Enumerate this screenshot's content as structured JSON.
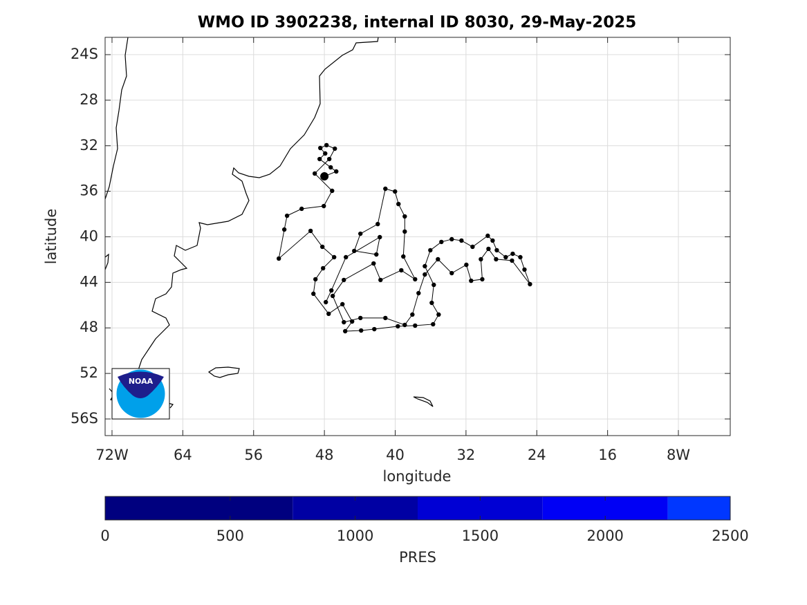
{
  "chart_data": {
    "type": "scatter",
    "title": "WMO ID 3902238, internal ID 8030, 29-May-2025",
    "xlabel": "longitude",
    "ylabel": "latitude",
    "connected": true,
    "color": "#000000",
    "grid": true,
    "xlim": [
      -72.78,
      -2.14
    ],
    "ylim": [
      -57.46,
      -22.48
    ],
    "xticks": [
      {
        "value": -72,
        "label": "72W"
      },
      {
        "value": -64,
        "label": "64"
      },
      {
        "value": -56,
        "label": "56"
      },
      {
        "value": -48,
        "label": "48"
      },
      {
        "value": -40,
        "label": "40"
      },
      {
        "value": -32,
        "label": "32"
      },
      {
        "value": -24,
        "label": "24"
      },
      {
        "value": -16,
        "label": "16"
      },
      {
        "value": -8,
        "label": "8W"
      }
    ],
    "yticks": [
      {
        "value": -24,
        "label": "24S"
      },
      {
        "value": -28,
        "label": "28"
      },
      {
        "value": -32,
        "label": "32"
      },
      {
        "value": -36,
        "label": "36"
      },
      {
        "value": -40,
        "label": "40"
      },
      {
        "value": -44,
        "label": "44"
      },
      {
        "value": -48,
        "label": "48"
      },
      {
        "value": -52,
        "label": "52"
      },
      {
        "value": -56,
        "label": "56S"
      }
    ],
    "x": [
      -48.0,
      -46.66,
      -47.29,
      -48.54,
      -47.91,
      -48.46,
      -47.76,
      -46.82,
      -47.45,
      -49.09,
      -47.13,
      -48.07,
      -50.57,
      -52.22,
      -52.53,
      -53.15,
      -49.56,
      -48.23,
      -46.9,
      -48.15,
      -49.01,
      -49.24,
      -47.52,
      -45.96,
      -44.87,
      -45.65,
      -43.85,
      -42.36,
      -39.7,
      -37.75,
      -35.72,
      -35.09,
      -35.87,
      -35.64,
      -36.65,
      -36.03,
      -34.78,
      -33.61,
      -32.51,
      -31.26,
      -29.54,
      -28.99,
      -28.52,
      -27.51,
      -26.72,
      -25.86,
      -25.39,
      -24.77,
      -26.8,
      -28.6,
      -29.46,
      -30.32,
      -30.16,
      -31.42,
      -31.96,
      -33.61,
      -35.17,
      -36.65,
      -37.36,
      -38.06,
      -38.92,
      -41.11,
      -43.93,
      -45.8,
      -47.06,
      -45.8,
      -42.44,
      -41.66,
      -39.31,
      -37.75,
      -39.08,
      -38.92,
      -38.92,
      -39.63,
      -40.02,
      -41.11,
      -41.97,
      -43.93,
      -44.63,
      -42.13,
      -41.74,
      -45.57,
      -47.21,
      -47.84
    ],
    "y": [
      -34.69,
      -34.26,
      -33.9,
      -33.17,
      -32.68,
      -32.2,
      -31.95,
      -32.26,
      -33.17,
      -34.44,
      -35.96,
      -37.3,
      -37.54,
      -38.15,
      -39.36,
      -41.91,
      -39.48,
      -40.88,
      -41.79,
      -42.76,
      -43.73,
      -45.0,
      -46.76,
      -45.92,
      -47.44,
      -48.29,
      -48.23,
      -48.11,
      -47.86,
      -47.8,
      -47.68,
      -46.83,
      -45.8,
      -44.22,
      -42.58,
      -41.18,
      -40.45,
      -40.21,
      -40.33,
      -40.88,
      -39.91,
      -40.33,
      -41.18,
      -41.79,
      -41.49,
      -41.79,
      -42.88,
      -44.16,
      -42.09,
      -41.97,
      -41.06,
      -41.97,
      -43.73,
      -43.86,
      -42.46,
      -43.19,
      -41.97,
      -43.31,
      -44.95,
      -46.83,
      -47.74,
      -47.13,
      -47.13,
      -47.5,
      -45.19,
      -43.79,
      -42.34,
      -43.79,
      -42.94,
      -43.73,
      -41.73,
      -39.54,
      -38.21,
      -37.12,
      -36.02,
      -35.78,
      -38.88,
      -39.73,
      -41.24,
      -41.55,
      -40.03,
      -41.79,
      -44.71,
      -45.74
    ],
    "colorbar": {
      "label": "PRES",
      "lim": [
        0,
        2500
      ],
      "ticks": [
        0,
        500,
        1000,
        1500,
        2000,
        2500
      ],
      "bounds": [
        0,
        750,
        1250,
        1750,
        2250,
        2500
      ],
      "colors": [
        "#00007f",
        "#0000a3",
        "#0000d4",
        "#0000f5",
        "#0037ff"
      ]
    }
  },
  "logo": {
    "text": "NOAA"
  }
}
